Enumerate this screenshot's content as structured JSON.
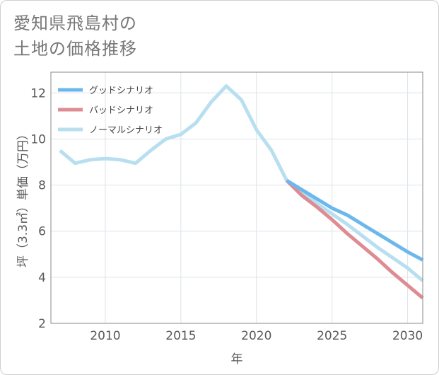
{
  "title_lines": [
    "愛知県飛島村の",
    "土地の価格推移"
  ],
  "chart_data": {
    "type": "line",
    "xlabel": "年",
    "ylabel": "坪（3.3㎡）単価（万円）",
    "xlim": [
      2006.4,
      2031
    ],
    "ylim": [
      2,
      12.9
    ],
    "xticks": [
      2010,
      2015,
      2020,
      2025,
      2030
    ],
    "yticks": [
      2,
      4,
      6,
      8,
      10,
      12
    ],
    "grid": true,
    "legend_position": "top-left",
    "series": [
      {
        "name": "グッドシナリオ",
        "color": "#6cb8ec",
        "x": [
          2022,
          2023,
          2024,
          2025,
          2026,
          2027,
          2028,
          2029,
          2030,
          2031
        ],
        "y": [
          8.2,
          7.8,
          7.4,
          7.0,
          6.7,
          6.3,
          5.9,
          5.5,
          5.1,
          4.75
        ]
      },
      {
        "name": "バッドシナリオ",
        "color": "#de8c93",
        "x": [
          2022,
          2023,
          2024,
          2025,
          2026,
          2027,
          2028,
          2029,
          2030,
          2031
        ],
        "y": [
          8.2,
          7.55,
          7.05,
          6.5,
          5.9,
          5.35,
          4.8,
          4.2,
          3.65,
          3.1
        ]
      },
      {
        "name": "ノーマルシナリオ",
        "color": "#b8dff0",
        "x": [
          2007,
          2008,
          2009,
          2010,
          2011,
          2012,
          2013,
          2014,
          2015,
          2016,
          2017,
          2018,
          2019,
          2020,
          2021,
          2022,
          2023,
          2024,
          2025,
          2026,
          2027,
          2028,
          2029,
          2030,
          2031
        ],
        "y": [
          9.5,
          8.95,
          9.1,
          9.15,
          9.1,
          8.95,
          9.5,
          10.0,
          10.2,
          10.7,
          11.6,
          12.3,
          11.7,
          10.4,
          9.5,
          8.2,
          7.7,
          7.2,
          6.75,
          6.3,
          5.8,
          5.3,
          4.85,
          4.4,
          3.85
        ]
      }
    ]
  }
}
